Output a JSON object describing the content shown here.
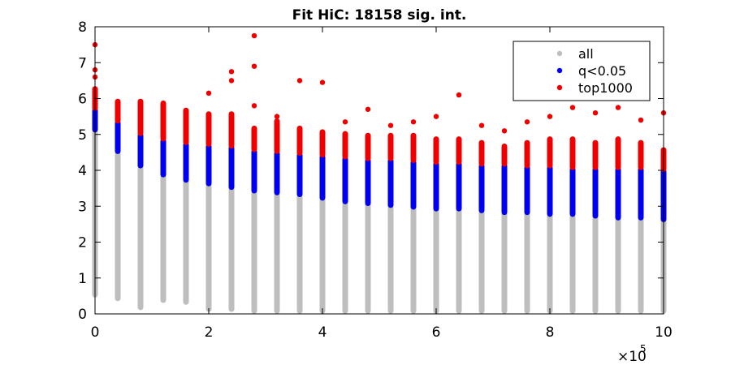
{
  "chart_data": {
    "type": "scatter",
    "title": "Fit HiC: 18158 sig. int.",
    "xlabel": "",
    "ylabel": "",
    "xlim": [
      0,
      1000000
    ],
    "ylim": [
      0,
      8
    ],
    "x_ticks": [
      0,
      200000,
      400000,
      600000,
      800000,
      1000000
    ],
    "x_tick_labels": [
      "0",
      "2",
      "4",
      "6",
      "8",
      "10"
    ],
    "x_multiplier_base": "×10",
    "x_multiplier_exp": "5",
    "y_ticks": [
      0,
      1,
      2,
      3,
      4,
      5,
      6,
      7,
      8
    ],
    "y_tick_labels": [
      "0",
      "1",
      "2",
      "3",
      "4",
      "5",
      "6",
      "7",
      "8"
    ],
    "grid": false,
    "legend_position": "top-right",
    "x_distances": [
      0,
      40000,
      80000,
      120000,
      160000,
      200000,
      240000,
      280000,
      320000,
      360000,
      400000,
      440000,
      480000,
      520000,
      560000,
      600000,
      640000,
      680000,
      720000,
      760000,
      800000,
      840000,
      880000,
      920000,
      960000,
      1000000
    ],
    "series": [
      {
        "name": "all",
        "color": "#bebebe",
        "ranges": [
          [
            0.5,
            5.1
          ],
          [
            0.4,
            4.5
          ],
          [
            0.15,
            4.1
          ],
          [
            0.35,
            3.85
          ],
          [
            0.3,
            3.7
          ],
          [
            0.1,
            3.6
          ],
          [
            0.1,
            3.5
          ],
          [
            0.05,
            3.4
          ],
          [
            0.05,
            3.35
          ],
          [
            0.05,
            3.3
          ],
          [
            0.05,
            3.2
          ],
          [
            0.05,
            3.1
          ],
          [
            0.05,
            3.05
          ],
          [
            0.05,
            3.0
          ],
          [
            0.05,
            2.95
          ],
          [
            0.05,
            2.9
          ],
          [
            0.05,
            2.9
          ],
          [
            0.05,
            2.85
          ],
          [
            0.05,
            2.8
          ],
          [
            0.05,
            2.8
          ],
          [
            0.05,
            2.75
          ],
          [
            0.05,
            2.75
          ],
          [
            0.05,
            2.7
          ],
          [
            0.05,
            2.65
          ],
          [
            0.05,
            2.65
          ],
          [
            0.05,
            2.6
          ]
        ]
      },
      {
        "name": "q<0.05",
        "color": "#0000ee",
        "ranges": [
          [
            5.1,
            5.7
          ],
          [
            4.5,
            5.35
          ],
          [
            4.1,
            5.0
          ],
          [
            3.85,
            4.85
          ],
          [
            3.7,
            4.75
          ],
          [
            3.6,
            4.7
          ],
          [
            3.5,
            4.65
          ],
          [
            3.4,
            4.55
          ],
          [
            3.35,
            4.5
          ],
          [
            3.3,
            4.45
          ],
          [
            3.2,
            4.4
          ],
          [
            3.1,
            4.35
          ],
          [
            3.05,
            4.3
          ],
          [
            3.0,
            4.3
          ],
          [
            2.95,
            4.25
          ],
          [
            2.9,
            4.2
          ],
          [
            2.9,
            4.2
          ],
          [
            2.85,
            4.15
          ],
          [
            2.8,
            4.15
          ],
          [
            2.8,
            4.1
          ],
          [
            2.75,
            4.1
          ],
          [
            2.75,
            4.05
          ],
          [
            2.7,
            4.05
          ],
          [
            2.65,
            4.05
          ],
          [
            2.65,
            4.05
          ],
          [
            2.6,
            4.0
          ]
        ]
      },
      {
        "name": "top1000",
        "color": "#ee0000",
        "ranges": [
          [
            5.7,
            6.3
          ],
          [
            5.35,
            5.95
          ],
          [
            5.0,
            5.95
          ],
          [
            4.85,
            5.9
          ],
          [
            4.75,
            5.7
          ],
          [
            4.7,
            5.6
          ],
          [
            4.65,
            5.6
          ],
          [
            4.55,
            5.2
          ],
          [
            4.5,
            5.4
          ],
          [
            4.45,
            5.2
          ],
          [
            4.4,
            5.1
          ],
          [
            4.35,
            5.05
          ],
          [
            4.3,
            5.0
          ],
          [
            4.3,
            5.0
          ],
          [
            4.25,
            5.0
          ],
          [
            4.2,
            4.9
          ],
          [
            4.2,
            4.9
          ],
          [
            4.15,
            4.8
          ],
          [
            4.15,
            4.7
          ],
          [
            4.1,
            4.8
          ],
          [
            4.1,
            4.9
          ],
          [
            4.05,
            4.9
          ],
          [
            4.05,
            4.8
          ],
          [
            4.05,
            4.9
          ],
          [
            4.05,
            4.8
          ],
          [
            4.0,
            4.6
          ]
        ],
        "outliers": [
          [
            0,
            7.5
          ],
          [
            0,
            6.8
          ],
          [
            0,
            6.6
          ],
          [
            200000,
            6.15
          ],
          [
            240000,
            6.75
          ],
          [
            240000,
            6.5
          ],
          [
            280000,
            7.75
          ],
          [
            280000,
            6.9
          ],
          [
            280000,
            5.8
          ],
          [
            320000,
            5.5
          ],
          [
            360000,
            6.5
          ],
          [
            400000,
            6.45
          ],
          [
            440000,
            5.35
          ],
          [
            480000,
            5.7
          ],
          [
            520000,
            5.25
          ],
          [
            560000,
            5.35
          ],
          [
            600000,
            5.5
          ],
          [
            640000,
            6.1
          ],
          [
            680000,
            5.25
          ],
          [
            720000,
            5.1
          ],
          [
            760000,
            5.35
          ],
          [
            800000,
            5.5
          ],
          [
            840000,
            5.75
          ],
          [
            880000,
            5.6
          ],
          [
            920000,
            5.75
          ],
          [
            960000,
            5.4
          ],
          [
            1000000,
            5.6
          ]
        ]
      }
    ]
  }
}
